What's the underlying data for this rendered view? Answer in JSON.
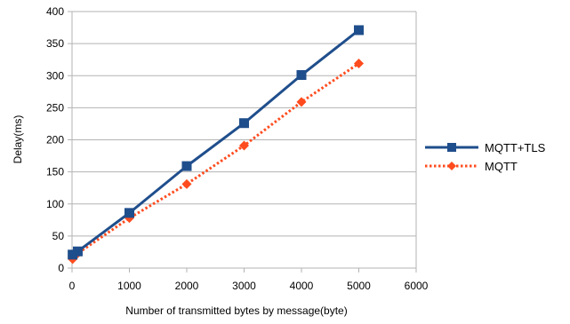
{
  "chart_data": {
    "type": "line",
    "title": "",
    "xlabel": "Number of transmitted bytes by message(byte)",
    "ylabel": "Delay(ms)",
    "xlim": [
      0,
      6000
    ],
    "ylim": [
      0,
      400
    ],
    "x_ticks": [
      0,
      1000,
      2000,
      3000,
      4000,
      5000,
      6000
    ],
    "y_ticks": [
      0,
      50,
      100,
      150,
      200,
      250,
      300,
      350,
      400
    ],
    "grid": "horizontal",
    "legend_position": "right",
    "series": [
      {
        "name": "MQTT+TLS",
        "color": "#1f4e8c",
        "marker": "square",
        "line_style": "solid",
        "points": [
          {
            "x": 10,
            "y": 21
          },
          {
            "x": 100,
            "y": 26
          },
          {
            "x": 1000,
            "y": 86
          },
          {
            "x": 2000,
            "y": 159
          },
          {
            "x": 3000,
            "y": 226
          },
          {
            "x": 4000,
            "y": 301
          },
          {
            "x": 5000,
            "y": 371
          }
        ]
      },
      {
        "name": "MQTT",
        "color": "#ff4c1f",
        "marker": "diamond",
        "line_style": "dotted",
        "points": [
          {
            "x": 10,
            "y": 14
          },
          {
            "x": 100,
            "y": 23
          },
          {
            "x": 1000,
            "y": 78
          },
          {
            "x": 2000,
            "y": 131
          },
          {
            "x": 3000,
            "y": 191
          },
          {
            "x": 4000,
            "y": 259
          },
          {
            "x": 5000,
            "y": 319
          }
        ]
      }
    ]
  }
}
